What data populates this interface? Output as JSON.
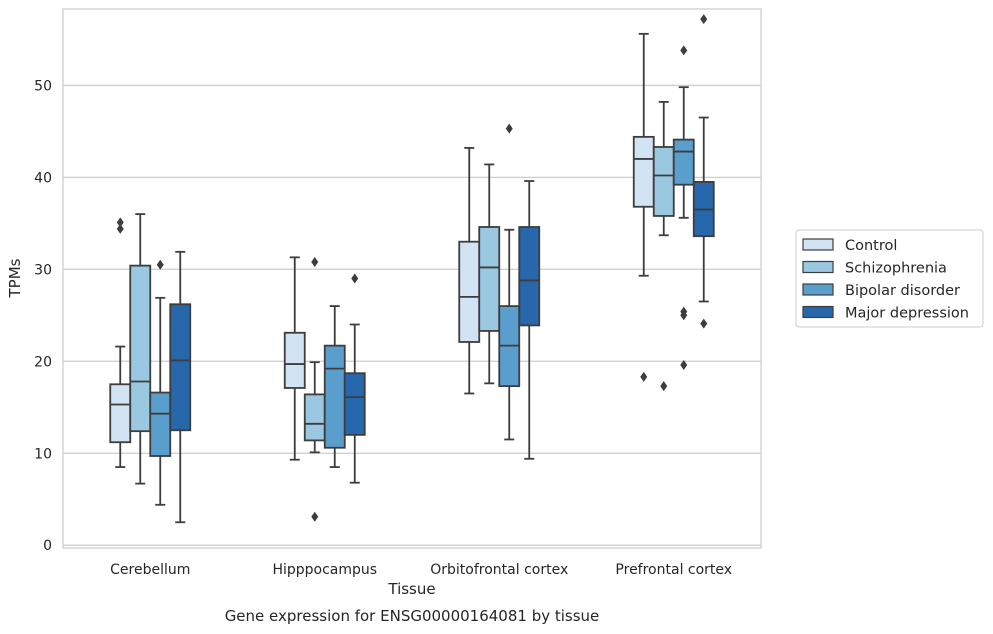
{
  "caption": "Gene expression for ENSG00000164081 by tissue",
  "chart_data": {
    "type": "box",
    "title": "",
    "xlabel": "Tissue",
    "ylabel": "TPMs",
    "ylim": [
      -0.3,
      58.3
    ],
    "yticks": [
      0,
      10,
      20,
      30,
      40,
      50
    ],
    "grid": "horizontal",
    "legend_position": "right",
    "categories": [
      "Cerebellum",
      "Hipppocampus",
      "Orbitofrontal cortex",
      "Prefrontal cortex"
    ],
    "series": [
      {
        "name": "Control",
        "color": "#d2e3f3",
        "boxes": [
          {
            "whislo": 8.5,
            "q1": 11.2,
            "med": 15.3,
            "q3": 17.5,
            "whishi": 21.6,
            "fliers": [
              34.4,
              35.1
            ]
          },
          {
            "whislo": 9.3,
            "q1": 17.1,
            "med": 19.7,
            "q3": 23.1,
            "whishi": 31.3,
            "fliers": []
          },
          {
            "whislo": 16.5,
            "q1": 22.1,
            "med": 27.0,
            "q3": 33.0,
            "whishi": 43.2,
            "fliers": []
          },
          {
            "whislo": 29.3,
            "q1": 36.8,
            "med": 42.0,
            "q3": 44.4,
            "whishi": 55.6,
            "fliers": [
              18.3
            ]
          }
        ]
      },
      {
        "name": "Schizophrenia",
        "color": "#9ac8e0",
        "boxes": [
          {
            "whislo": 6.7,
            "q1": 12.4,
            "med": 17.8,
            "q3": 30.4,
            "whishi": 36.0,
            "fliers": []
          },
          {
            "whislo": 10.1,
            "q1": 11.4,
            "med": 13.2,
            "q3": 16.4,
            "whishi": 19.9,
            "fliers": [
              3.1,
              30.8
            ]
          },
          {
            "whislo": 17.6,
            "q1": 23.3,
            "med": 30.2,
            "q3": 34.6,
            "whishi": 41.4,
            "fliers": []
          },
          {
            "whislo": 33.7,
            "q1": 35.8,
            "med": 40.2,
            "q3": 43.3,
            "whishi": 48.2,
            "fliers": [
              17.3
            ]
          }
        ]
      },
      {
        "name": "Bipolar disorder",
        "color": "#5a9ecd",
        "boxes": [
          {
            "whislo": 4.4,
            "q1": 9.7,
            "med": 14.3,
            "q3": 16.6,
            "whishi": 26.9,
            "fliers": [
              30.5
            ]
          },
          {
            "whislo": 8.5,
            "q1": 10.6,
            "med": 19.2,
            "q3": 21.7,
            "whishi": 26.0,
            "fliers": []
          },
          {
            "whislo": 11.5,
            "q1": 17.3,
            "med": 21.7,
            "q3": 26.0,
            "whishi": 34.3,
            "fliers": [
              45.3
            ]
          },
          {
            "whislo": 35.6,
            "q1": 39.2,
            "med": 42.8,
            "q3": 44.1,
            "whishi": 49.8,
            "fliers": [
              19.6,
              25.0,
              25.4,
              53.8
            ]
          }
        ]
      },
      {
        "name": "Major depression",
        "color": "#2767ab",
        "boxes": [
          {
            "whislo": 2.5,
            "q1": 12.5,
            "med": 20.1,
            "q3": 26.2,
            "whishi": 31.9,
            "fliers": []
          },
          {
            "whislo": 6.8,
            "q1": 12.0,
            "med": 16.1,
            "q3": 18.7,
            "whishi": 24.0,
            "fliers": [
              29.0
            ]
          },
          {
            "whislo": 9.4,
            "q1": 23.9,
            "med": 28.8,
            "q3": 34.6,
            "whishi": 39.6,
            "fliers": []
          },
          {
            "whislo": 26.5,
            "q1": 33.6,
            "med": 36.5,
            "q3": 39.5,
            "whishi": 46.5,
            "fliers": [
              24.1,
              57.2
            ]
          }
        ]
      }
    ]
  }
}
